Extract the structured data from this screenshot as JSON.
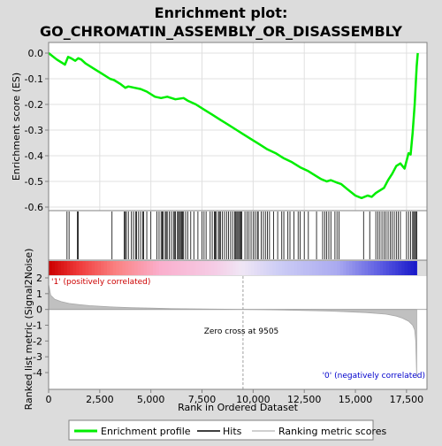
{
  "chart_data": {
    "type": "line",
    "title_line1": "Enrichment plot:",
    "title_line2": "GO_CHROMATIN_ASSEMBLY_OR_DISASSEMBLY",
    "es_ylabel": "Enrichment score (ES)",
    "metric_ylabel": "Ranked list metric (Signal2Noise)",
    "xlabel": "Rank in Ordered Dataset",
    "xlim": [
      0,
      18500
    ],
    "x_ticks": [
      0,
      2500,
      5000,
      7500,
      10000,
      12500,
      15000,
      17500
    ],
    "x_tick_labels": [
      "0",
      "2,500",
      "5,000",
      "7,500",
      "10,000",
      "12,500",
      "15,000",
      "17,500"
    ],
    "es_ylim": [
      -0.6,
      0.0
    ],
    "es_ticks": [
      0.0,
      -0.1,
      -0.2,
      -0.3,
      -0.4,
      -0.5,
      -0.6
    ],
    "es_tick_labels": [
      "0.0",
      "-0.1",
      "-0.2",
      "-0.3",
      "-0.4",
      "-0.5",
      "-0.6"
    ],
    "metric_ylim": [
      -4.6,
      2.0
    ],
    "metric_ticks": [
      2,
      1,
      0,
      -1,
      -2,
      -3,
      -4
    ],
    "metric_tick_labels": [
      "2",
      "1",
      "0",
      "-1",
      "-2",
      "-3",
      "-4"
    ],
    "positive_label": "'1' (positively correlated)",
    "negative_label": "'0' (negatively correlated)",
    "zero_cross_label": "Zero cross at 9505",
    "zero_cross": 9505,
    "n_genes": 18000,
    "legend": [
      "Enrichment profile",
      "Hits",
      "Ranking metric scores"
    ],
    "colors": {
      "es_line": "#00ee00",
      "hits": "#000000",
      "metric": "#c0c0c0",
      "positive_text": "#cc0000",
      "negative_text": "#0000cc",
      "plot_bg": "#ffffff",
      "page_bg": "#dcdcdc"
    },
    "es_profile": {
      "x": [
        0,
        400,
        800,
        950,
        1100,
        1300,
        1450,
        1600,
        1800,
        2200,
        2600,
        3000,
        3200,
        3500,
        3750,
        3900,
        4200,
        4500,
        4800,
        5200,
        5500,
        5800,
        6200,
        6600,
        6800,
        7200,
        7600,
        8000,
        8400,
        8800,
        9200,
        9500,
        9900,
        10300,
        10700,
        11100,
        11500,
        11900,
        12300,
        12700,
        13000,
        13300,
        13600,
        13800,
        14100,
        14300,
        14600,
        15000,
        15300,
        15600,
        15800,
        16000,
        16200,
        16400,
        16600,
        16800,
        17000,
        17200,
        17400,
        17600,
        17700,
        17800,
        17900,
        17950,
        18000,
        18050
      ],
      "es": [
        0.0,
        -0.025,
        -0.045,
        -0.015,
        -0.02,
        -0.03,
        -0.02,
        -0.025,
        -0.04,
        -0.06,
        -0.08,
        -0.1,
        -0.105,
        -0.12,
        -0.135,
        -0.13,
        -0.135,
        -0.14,
        -0.15,
        -0.17,
        -0.175,
        -0.17,
        -0.18,
        -0.175,
        -0.185,
        -0.2,
        -0.22,
        -0.24,
        -0.26,
        -0.28,
        -0.3,
        -0.315,
        -0.335,
        -0.355,
        -0.375,
        -0.39,
        -0.41,
        -0.425,
        -0.445,
        -0.46,
        -0.475,
        -0.49,
        -0.5,
        -0.495,
        -0.505,
        -0.51,
        -0.53,
        -0.555,
        -0.565,
        -0.555,
        -0.56,
        -0.545,
        -0.535,
        -0.525,
        -0.495,
        -0.47,
        -0.44,
        -0.43,
        -0.45,
        -0.39,
        -0.395,
        -0.31,
        -0.2,
        -0.12,
        -0.05,
        0.0
      ]
    },
    "hits": [
      900,
      1000,
      1400,
      1450,
      3100,
      3700,
      3750,
      3800,
      3900,
      4050,
      4150,
      4250,
      4300,
      4400,
      4500,
      4600,
      4650,
      4800,
      5000,
      5300,
      5400,
      5500,
      5550,
      5600,
      5700,
      5750,
      5800,
      5900,
      6000,
      6100,
      6150,
      6200,
      6300,
      6350,
      6400,
      6450,
      6500,
      6550,
      6600,
      6700,
      6800,
      6950,
      7100,
      7300,
      7500,
      7600,
      7700,
      7900,
      8000,
      8100,
      8150,
      8200,
      8300,
      8350,
      8400,
      8500,
      8600,
      8700,
      8800,
      8900,
      9000,
      9100,
      9150,
      9200,
      9250,
      9300,
      9350,
      9400,
      9450,
      9600,
      9700,
      9800,
      9900,
      10000,
      10100,
      10200,
      10250,
      10400,
      10500,
      10600,
      10700,
      10800,
      11000,
      11200,
      11400,
      11500,
      11700,
      11800,
      12000,
      12200,
      12300,
      12500,
      12700,
      13100,
      13400,
      13500,
      13600,
      13700,
      13800,
      14000,
      14100,
      14200,
      15400,
      15700,
      16000,
      16100,
      16200,
      16300,
      16400,
      16500,
      16600,
      16700,
      16800,
      16900,
      17000,
      17100,
      17200,
      17500,
      17600,
      17700,
      17800,
      17850,
      17900,
      17950,
      18000
    ],
    "metric_curve": {
      "x": [
        0,
        100,
        300,
        600,
        1000,
        1500,
        2000,
        3000,
        4000,
        5000,
        6000,
        7000,
        8000,
        9000,
        9505,
        10500,
        11500,
        12500,
        13500,
        14500,
        15500,
        16000,
        16500,
        17000,
        17300,
        17600,
        17800,
        17900,
        17950,
        18000
      ],
      "value": [
        1.6,
        0.9,
        0.65,
        0.5,
        0.38,
        0.3,
        0.24,
        0.16,
        0.11,
        0.08,
        0.05,
        0.035,
        0.02,
        0.008,
        0.0,
        -0.02,
        -0.04,
        -0.07,
        -0.1,
        -0.14,
        -0.2,
        -0.25,
        -0.3,
        -0.42,
        -0.55,
        -0.75,
        -1.0,
        -1.3,
        -2.0,
        -4.3
      ]
    }
  }
}
